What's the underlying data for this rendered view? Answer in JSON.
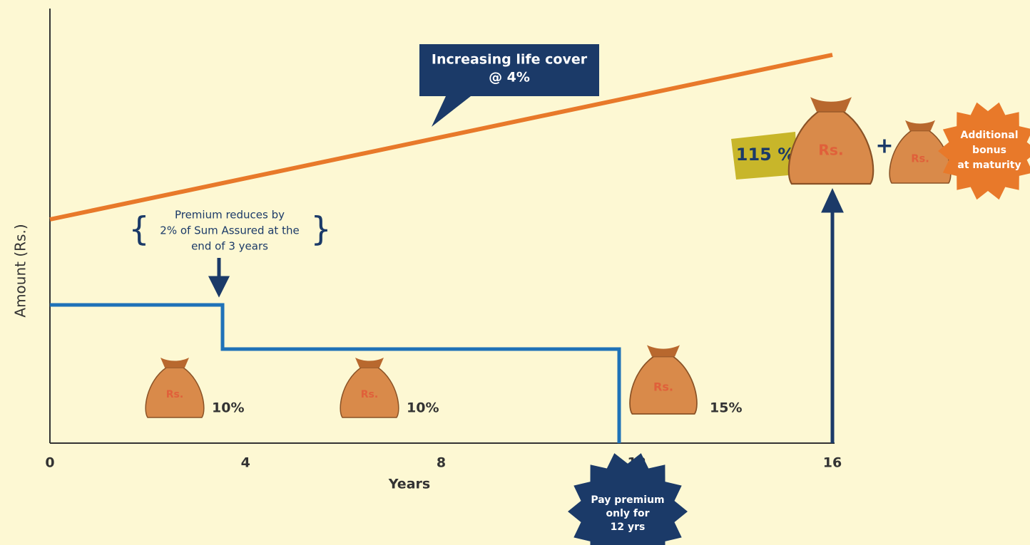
{
  "axes": {
    "y_label": "Amount (Rs.)",
    "x_label": "Years",
    "x_ticks": [
      0,
      4,
      8,
      12,
      16
    ]
  },
  "callout_life_cover": [
    "Increasing life cover",
    "@ 4%"
  ],
  "premium_note": [
    "Premium reduces by",
    "2% of Sum Assured at the",
    "end of 3 years"
  ],
  "payouts": [
    "10%",
    "10%",
    "15%",
    "115 %"
  ],
  "bag_text": "Rs.",
  "plus": "+",
  "bonus_badge": [
    "Additional",
    "bonus",
    "at maturity"
  ],
  "premium_badge": [
    "Pay premium",
    "only for",
    "12 yrs"
  ]
}
